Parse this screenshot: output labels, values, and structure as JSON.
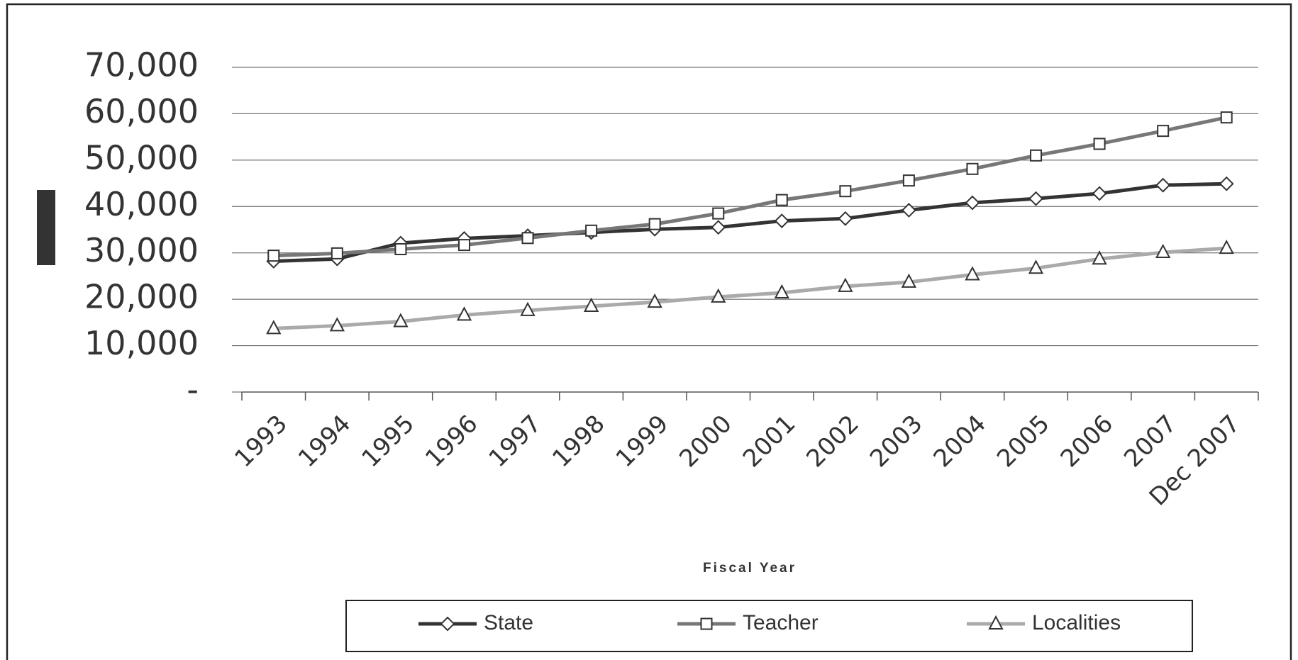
{
  "chart_data": {
    "type": "line",
    "x_label": "Fiscal Year",
    "categories": [
      "1993",
      "1994",
      "1995",
      "1996",
      "1997",
      "1998",
      "1999",
      "2000",
      "2001",
      "2002",
      "2003",
      "2004",
      "2005",
      "2006",
      "2007",
      "Dec 2007"
    ],
    "series": [
      {
        "name": "State",
        "color": "#333333",
        "marker": "diamond",
        "values": [
          28200,
          28700,
          32100,
          33100,
          33700,
          34400,
          35100,
          35500,
          36900,
          37400,
          39200,
          40800,
          41700,
          42800,
          44600,
          44900
        ]
      },
      {
        "name": "Teacher",
        "color": "#777777",
        "marker": "square",
        "values": [
          29400,
          29900,
          30800,
          31700,
          33200,
          34800,
          36200,
          38500,
          41400,
          43300,
          45600,
          48100,
          51000,
          53500,
          56300,
          59200
        ]
      },
      {
        "name": "Localities",
        "color": "#aaaaaa",
        "marker": "triangle",
        "values": [
          13700,
          14300,
          15200,
          16600,
          17600,
          18500,
          19400,
          20500,
          21400,
          22800,
          23700,
          25300,
          26700,
          28700,
          30100,
          31000
        ]
      }
    ],
    "ylim": [
      0,
      70000
    ],
    "yticks": [
      {
        "value": 0,
        "label": "-"
      },
      {
        "value": 10000,
        "label": "10,000"
      },
      {
        "value": 20000,
        "label": "20,000"
      },
      {
        "value": 30000,
        "label": "30,000"
      },
      {
        "value": 40000,
        "label": "40,000"
      },
      {
        "value": 50000,
        "label": "50,000"
      },
      {
        "value": 60000,
        "label": "60,000"
      },
      {
        "value": 70000,
        "label": "70,000"
      }
    ],
    "grid": true,
    "legend": "bottom"
  }
}
